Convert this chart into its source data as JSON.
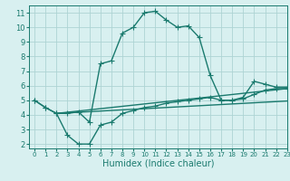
{
  "line1_x": [
    0,
    1,
    2,
    3,
    4,
    5,
    6,
    7,
    8,
    9,
    10,
    11,
    12,
    13,
    14,
    15,
    16,
    17,
    18,
    19,
    20,
    21,
    22,
    23
  ],
  "line1_y": [
    5.0,
    4.5,
    4.1,
    4.1,
    4.2,
    3.5,
    7.5,
    7.7,
    9.6,
    10.0,
    11.0,
    11.1,
    10.5,
    10.0,
    10.1,
    9.3,
    6.7,
    5.0,
    5.0,
    5.2,
    6.3,
    6.1,
    5.9,
    5.9
  ],
  "line2_x": [
    0,
    1,
    2,
    3,
    4,
    5,
    6,
    7,
    8,
    9,
    10,
    11,
    12,
    13,
    14,
    15,
    16,
    17,
    18,
    19,
    20,
    21,
    22,
    23
  ],
  "line2_y": [
    5.0,
    4.5,
    4.1,
    2.6,
    2.0,
    2.0,
    3.3,
    3.5,
    4.1,
    4.3,
    4.5,
    4.6,
    4.8,
    4.9,
    5.0,
    5.1,
    5.2,
    5.0,
    5.0,
    5.1,
    5.4,
    5.7,
    5.8,
    5.8
  ],
  "line3_x": [
    2,
    23
  ],
  "line3_y": [
    4.1,
    5.8
  ],
  "line4_x": [
    2,
    23
  ],
  "line4_y": [
    4.1,
    4.95
  ],
  "line_color": "#1a7a6e",
  "bg_color": "#d8f0f0",
  "grid_color": "#aed4d4",
  "xlabel": "Humidex (Indice chaleur)",
  "xlim": [
    -0.5,
    23
  ],
  "ylim": [
    1.7,
    11.5
  ],
  "xticks": [
    0,
    1,
    2,
    3,
    4,
    5,
    6,
    7,
    8,
    9,
    10,
    11,
    12,
    13,
    14,
    15,
    16,
    17,
    18,
    19,
    20,
    21,
    22,
    23
  ],
  "yticks": [
    2,
    3,
    4,
    5,
    6,
    7,
    8,
    9,
    10,
    11
  ],
  "marker": "+",
  "markersize": 4,
  "linewidth": 1.0
}
